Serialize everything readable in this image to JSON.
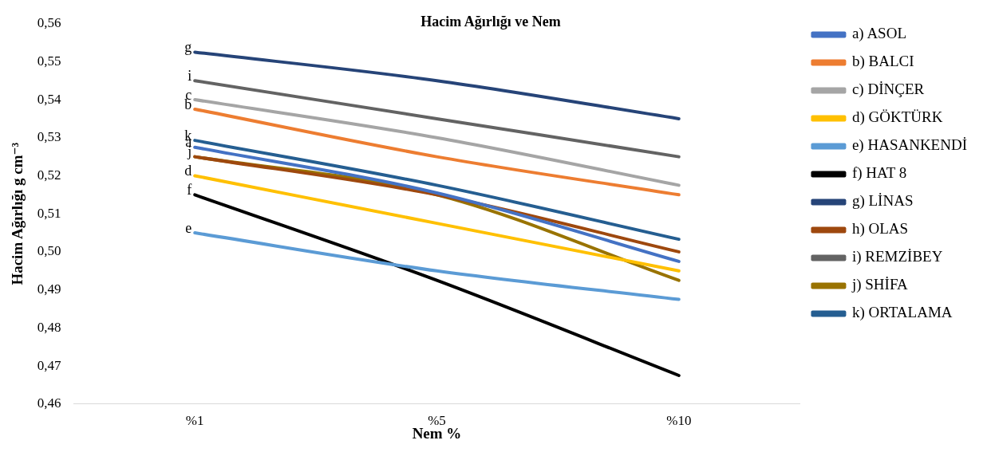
{
  "chart_data": {
    "type": "line",
    "title": "Hacim Ağırlığı ve Nem",
    "xlabel": "Nem %",
    "ylabel": "Hacim Ağırlığı g cm⁻³",
    "categories": [
      "%1",
      "%5",
      "%10"
    ],
    "series": [
      {
        "name": "a) ASOL",
        "color": "#4472c4",
        "values": [
          0.5275,
          0.5155,
          0.4975
        ]
      },
      {
        "name": "b) BALCI",
        "color": "#ed7d31",
        "values": [
          0.5375,
          0.525,
          0.515
        ]
      },
      {
        "name": "c) DİNÇER",
        "color": "#a5a5a5",
        "values": [
          0.54,
          0.53,
          0.5175
        ]
      },
      {
        "name": "d) GÖKTÜRK",
        "color": "#ffc000",
        "values": [
          0.52,
          0.5075,
          0.495
        ]
      },
      {
        "name": "e) HASANKENDİ",
        "color": "#5b9bd5",
        "values": [
          0.505,
          0.495,
          0.4875
        ]
      },
      {
        "name": "f) HAT 8",
        "color": "#000000",
        "values": [
          0.515,
          0.4925,
          0.4675
        ]
      },
      {
        "name": "g) LİNAS",
        "color": "#264478",
        "values": [
          0.5525,
          0.545,
          0.535
        ]
      },
      {
        "name": "h) OLAS",
        "color": "#9e480e",
        "values": [
          0.525,
          0.515,
          0.5
        ]
      },
      {
        "name": "i) REMZİBEY",
        "color": "#636363",
        "values": [
          0.545,
          0.535,
          0.525
        ]
      },
      {
        "name": "j) SHİFA",
        "color": "#997300",
        "values": [
          0.525,
          0.515,
          0.4925
        ]
      },
      {
        "name": "k) ORTALAMA",
        "color": "#255e91",
        "values": [
          0.5293,
          0.5175,
          0.5033
        ]
      }
    ],
    "ylim": [
      0.46,
      0.56
    ],
    "yticks": [
      {
        "value": 0.46,
        "label": "0,46"
      },
      {
        "value": 0.47,
        "label": "0,47"
      },
      {
        "value": 0.48,
        "label": "0,48"
      },
      {
        "value": 0.49,
        "label": "0,49"
      },
      {
        "value": 0.5,
        "label": "0,50"
      },
      {
        "value": 0.51,
        "label": "0,51"
      },
      {
        "value": 0.52,
        "label": "0,52"
      },
      {
        "value": 0.53,
        "label": "0,53"
      },
      {
        "value": 0.54,
        "label": "0,54"
      },
      {
        "value": 0.55,
        "label": "0,55"
      },
      {
        "value": 0.56,
        "label": "0,56"
      }
    ],
    "annotations": [
      {
        "text": "g",
        "x": "%1",
        "y": 0.5525
      },
      {
        "text": "i",
        "x": "%1",
        "y": 0.545
      },
      {
        "text": "c",
        "x": "%1",
        "y": 0.54
      },
      {
        "text": "b",
        "x": "%1",
        "y": 0.5375
      },
      {
        "text": "k",
        "x": "%1",
        "y": 0.5293
      },
      {
        "text": "a",
        "x": "%1",
        "y": 0.5275
      },
      {
        "text": "j",
        "x": "%1",
        "y": 0.525
      },
      {
        "text": "d",
        "x": "%1",
        "y": 0.52
      },
      {
        "text": "f",
        "x": "%1",
        "y": 0.515
      },
      {
        "text": "e",
        "x": "%1",
        "y": 0.505
      }
    ],
    "grid": false,
    "legend": "right",
    "marker": "none",
    "line_style": "solid"
  }
}
